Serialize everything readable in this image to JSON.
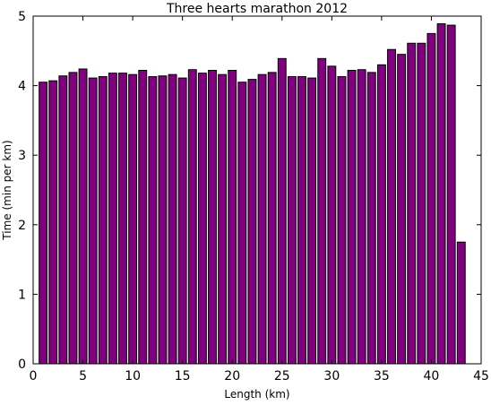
{
  "colors": {
    "bar_fill": "#800080",
    "bar_edge": "#000000",
    "axes": "#000000",
    "background": "#ffffff"
  },
  "chart_data": {
    "type": "bar",
    "title": "Three hearts marathon 2012",
    "xlabel": "Length (km)",
    "ylabel": "Time (min per km)",
    "xlim": [
      0,
      45
    ],
    "ylim": [
      0,
      5
    ],
    "grid": false,
    "x_ticks": [
      "0",
      "5",
      "10",
      "15",
      "20",
      "25",
      "30",
      "35",
      "40",
      "45"
    ],
    "y_ticks": [
      "0",
      "1",
      "2",
      "3",
      "4",
      "5"
    ],
    "bar_width": 0.8,
    "x": [
      1,
      2,
      3,
      4,
      5,
      6,
      7,
      8,
      9,
      10,
      11,
      12,
      13,
      14,
      15,
      16,
      17,
      18,
      19,
      20,
      21,
      22,
      23,
      24,
      25,
      26,
      27,
      28,
      29,
      30,
      31,
      32,
      33,
      34,
      35,
      36,
      37,
      38,
      39,
      40,
      41,
      42,
      43
    ],
    "values": [
      4.05,
      4.07,
      4.14,
      4.19,
      4.24,
      4.11,
      4.13,
      4.18,
      4.18,
      4.16,
      4.22,
      4.13,
      4.14,
      4.16,
      4.11,
      4.23,
      4.18,
      4.22,
      4.16,
      4.22,
      4.05,
      4.09,
      4.16,
      4.19,
      4.39,
      4.13,
      4.13,
      4.11,
      4.39,
      4.28,
      4.13,
      4.22,
      4.23,
      4.19,
      4.3,
      4.52,
      4.45,
      4.61,
      4.61,
      4.75,
      4.89,
      4.87,
      1.75
    ]
  }
}
